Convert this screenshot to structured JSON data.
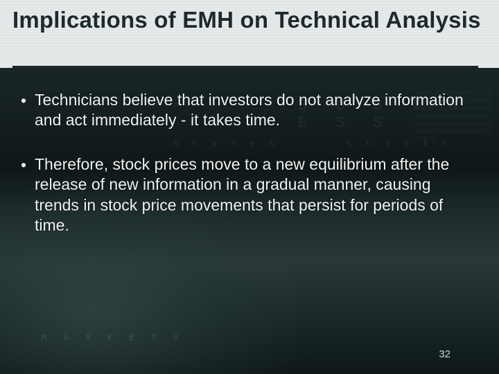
{
  "slide": {
    "title": "Implications of EMH on Technical Analysis",
    "bullets": [
      "Technicians believe that investors do not analyze information and act immediately - it takes time.",
      "Therefore, stock prices move to a new equilibrium after the release of new information in a gradual manner, causing trends in stock price movements that persist for periods of time."
    ],
    "number": "32",
    "title_fontsize": 33,
    "body_fontsize": 23,
    "title_color": "#1e2a2a",
    "body_color": "#f0f2f2",
    "header_bg": "#e6eaea",
    "body_bg": "#1a2626",
    "underline_color": "#1e2a2a"
  },
  "deco": {
    "word_shares": "s h a r e s",
    "word_stocks": "s t o c k s",
    "word_big": "B U S I N E S S",
    "word_markets": "M A R K E T S",
    "digits": "01101001011010010101101001010101011010100101010101101010101010110010110101010101010010101010101101010101011010101010101101010"
  }
}
